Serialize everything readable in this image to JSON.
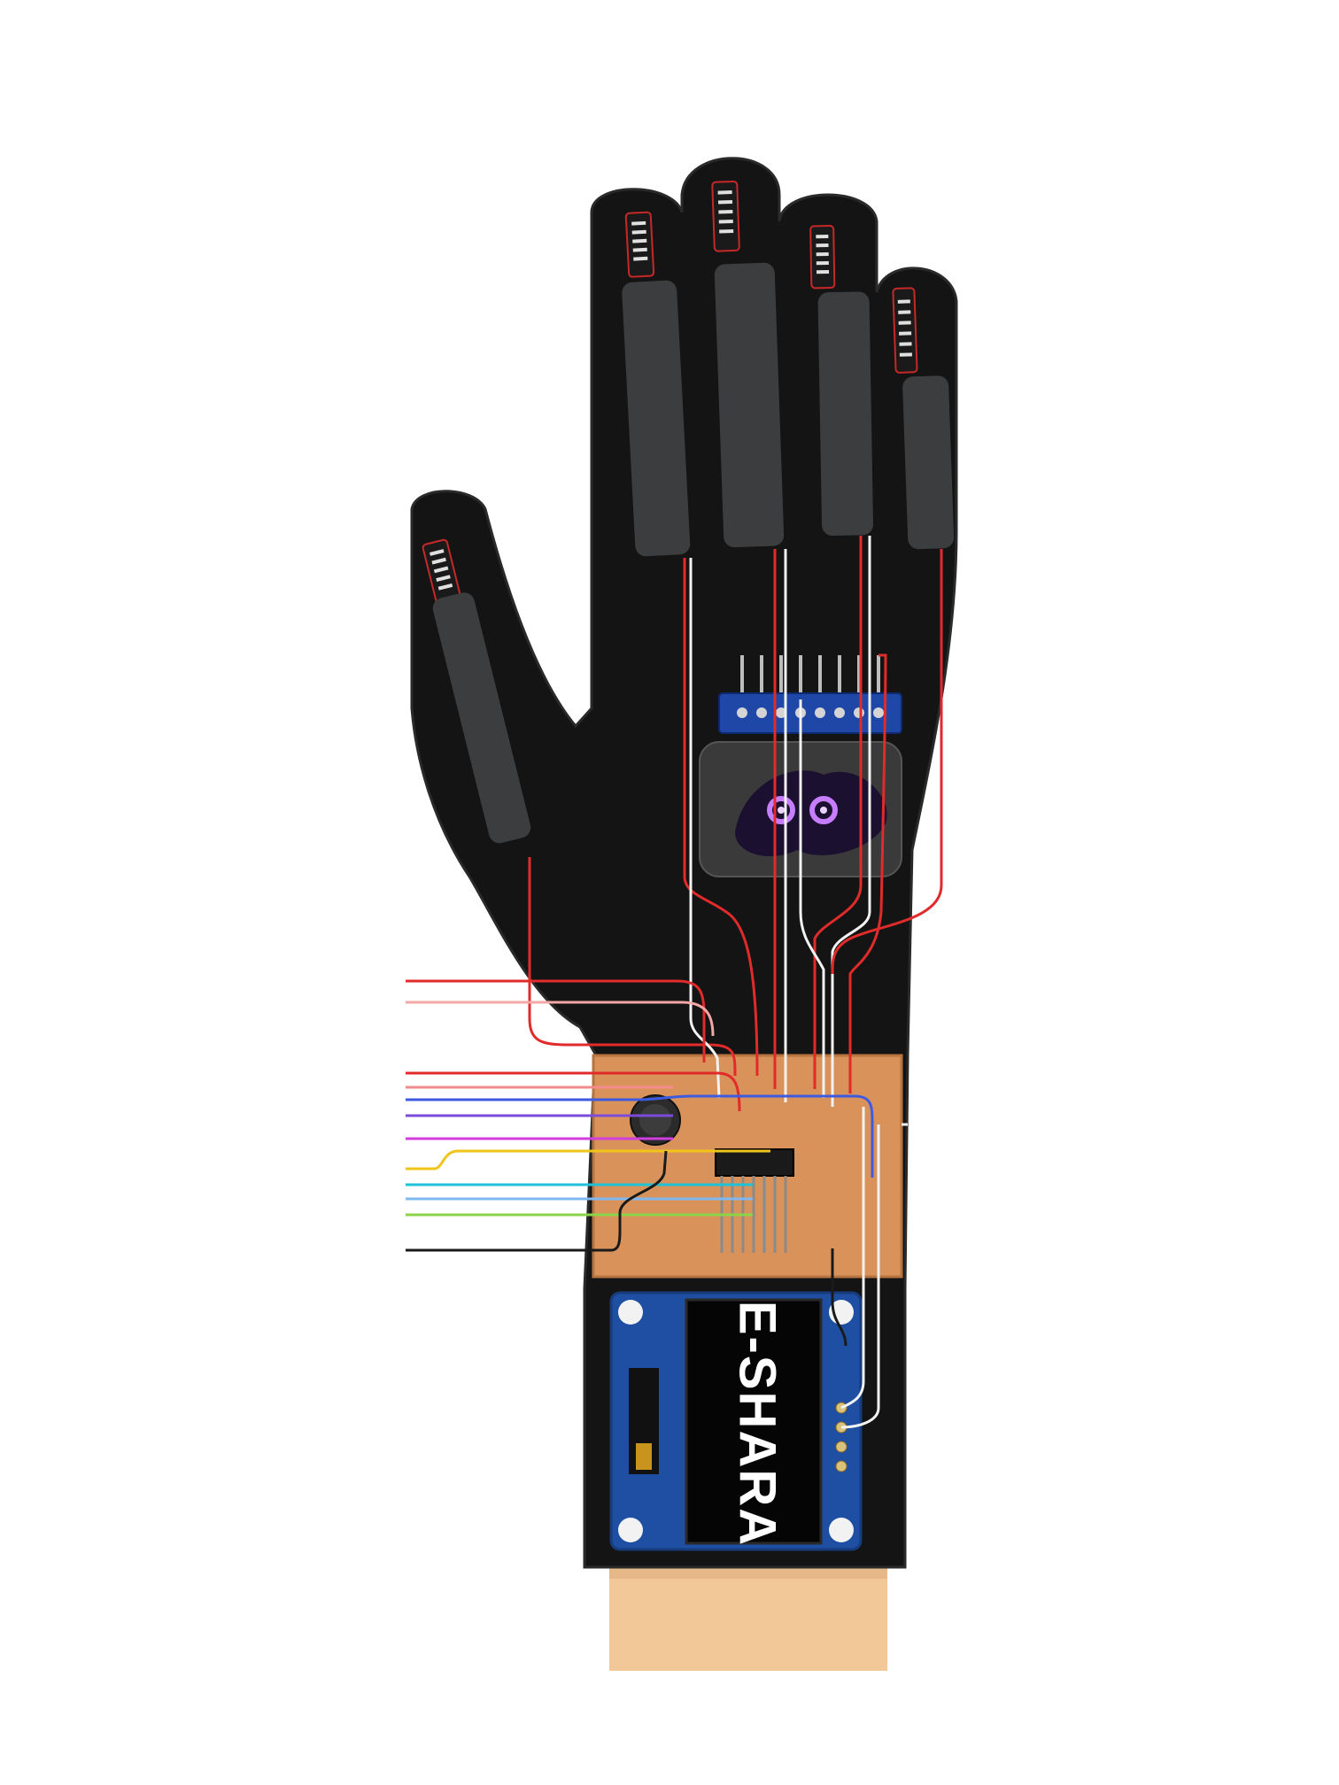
{
  "display": {
    "label": "E-SHARA"
  },
  "colors": {
    "glove": "#141414",
    "skin": "#f3c898",
    "sensor_strip": "#3b3d3f",
    "perfboard": "#d9935a",
    "oled_blue": "#1e4fa3",
    "wire_red": "#e12b2b",
    "wire_white": "#f2f2f2"
  },
  "components": {
    "flex_sensor_count": 5,
    "mpu_module": "accelerometer-module",
    "microcontroller": "ic-chip",
    "display_module": "oled-display"
  },
  "icons": [
    "flex-sensor-icon",
    "mpu-module-icon",
    "oled-display-icon",
    "perfboard-icon"
  ]
}
